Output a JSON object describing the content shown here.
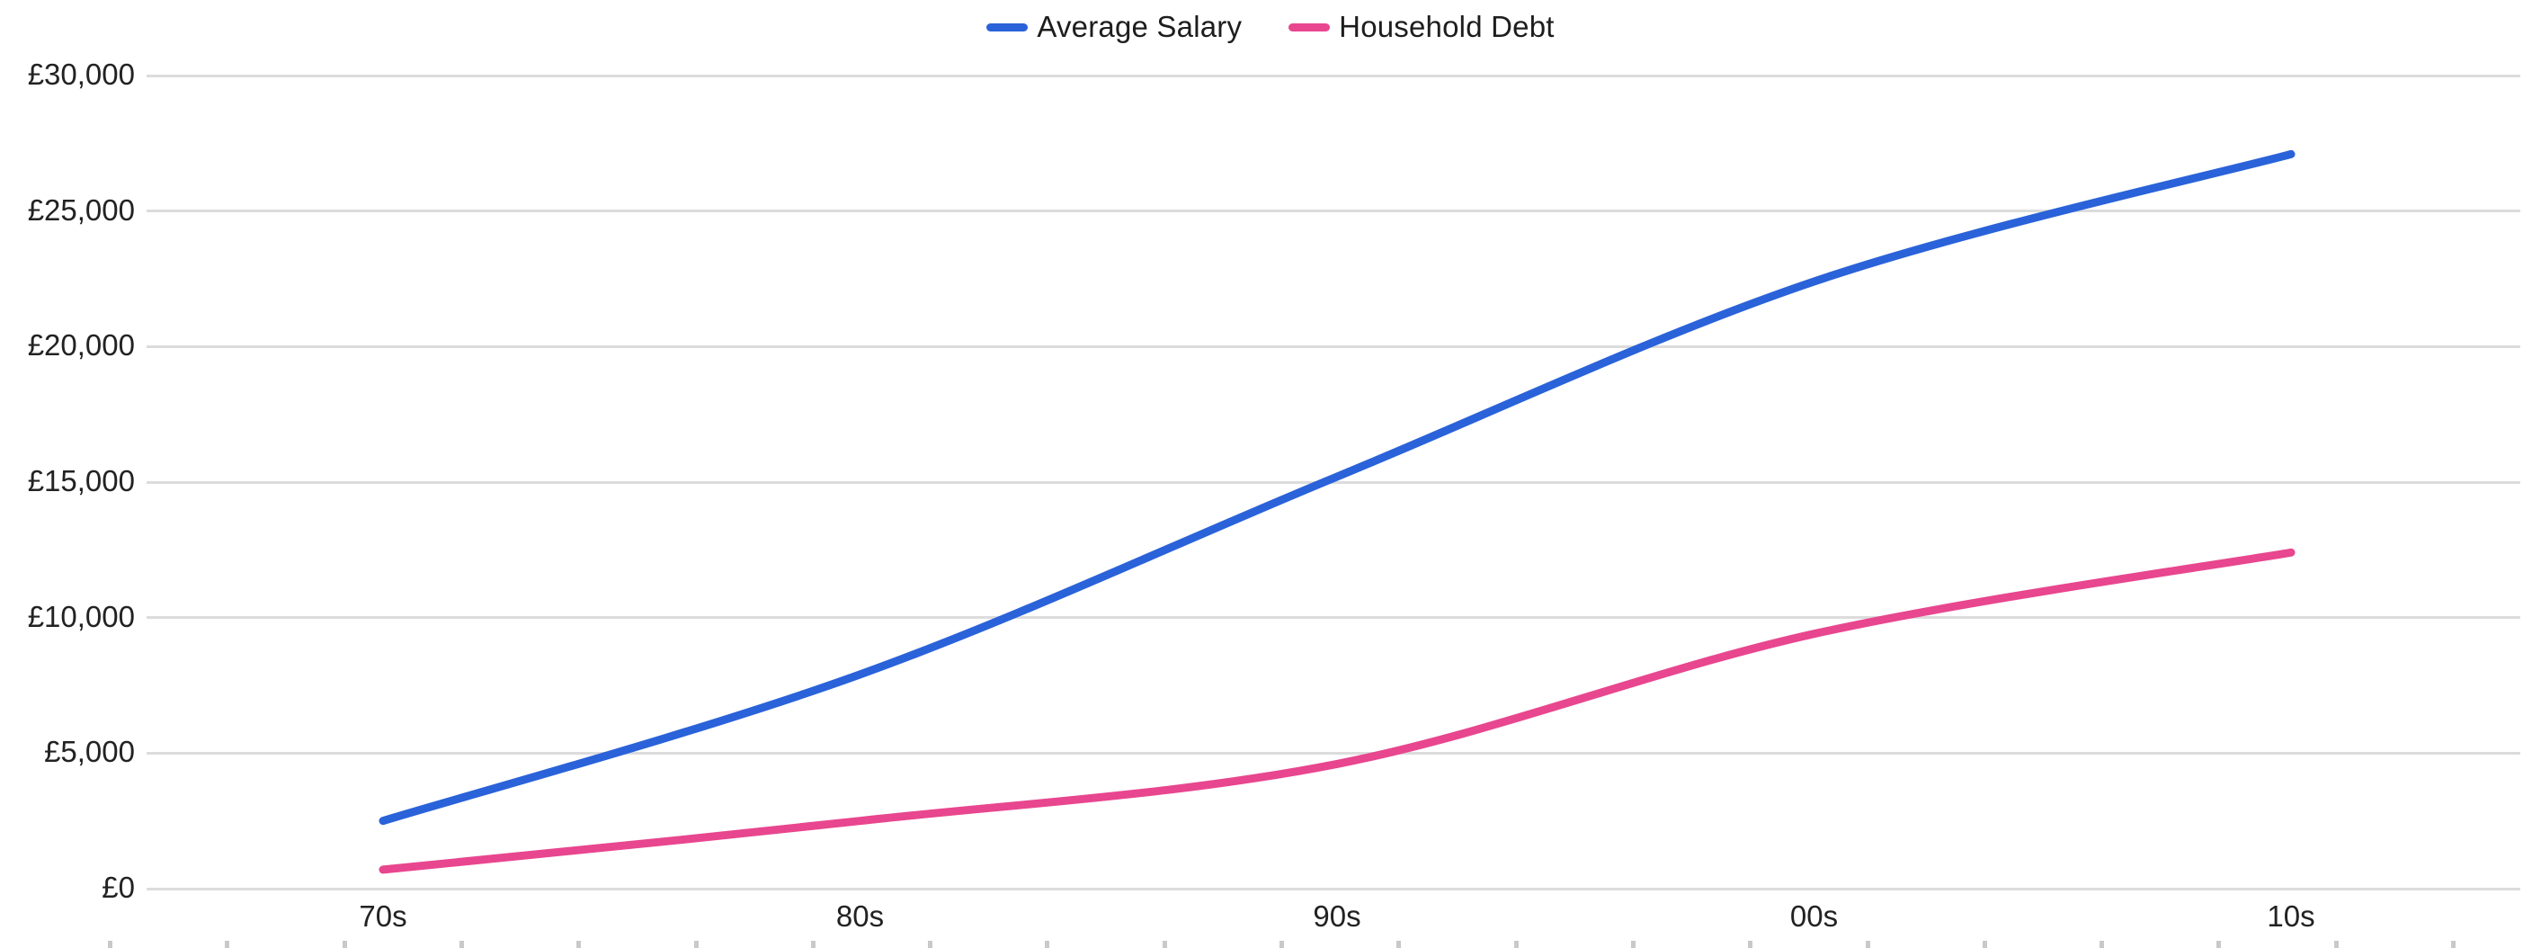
{
  "chart_data": {
    "type": "line",
    "title": "",
    "xlabel": "",
    "ylabel": "",
    "currency": "£",
    "categories": [
      "70s",
      "80s",
      "90s",
      "00s",
      "10s"
    ],
    "series": [
      {
        "name": "Average Salary",
        "color": "#2a62d9",
        "values": [
          2500,
          7900,
          15200,
          22400,
          27100
        ]
      },
      {
        "name": "Household Debt",
        "color": "#e8468f",
        "values": [
          700,
          2500,
          4600,
          9400,
          12400
        ]
      }
    ],
    "ylim": [
      0,
      30000
    ],
    "y_ticks": [
      {
        "value": 0,
        "label": "£0"
      },
      {
        "value": 5000,
        "label": "£5,000"
      },
      {
        "value": 10000,
        "label": "£10,000"
      },
      {
        "value": 15000,
        "label": "£15,000"
      },
      {
        "value": 20000,
        "label": "£20,000"
      },
      {
        "value": 25000,
        "label": "£25,000"
      },
      {
        "value": 30000,
        "label": "£30,000"
      }
    ],
    "grid": "horizontal",
    "gridline_color": "#dcdcdc",
    "minor_tick_color": "#c9c9c9",
    "legend_position": "top-center",
    "text_color": "#222222"
  }
}
